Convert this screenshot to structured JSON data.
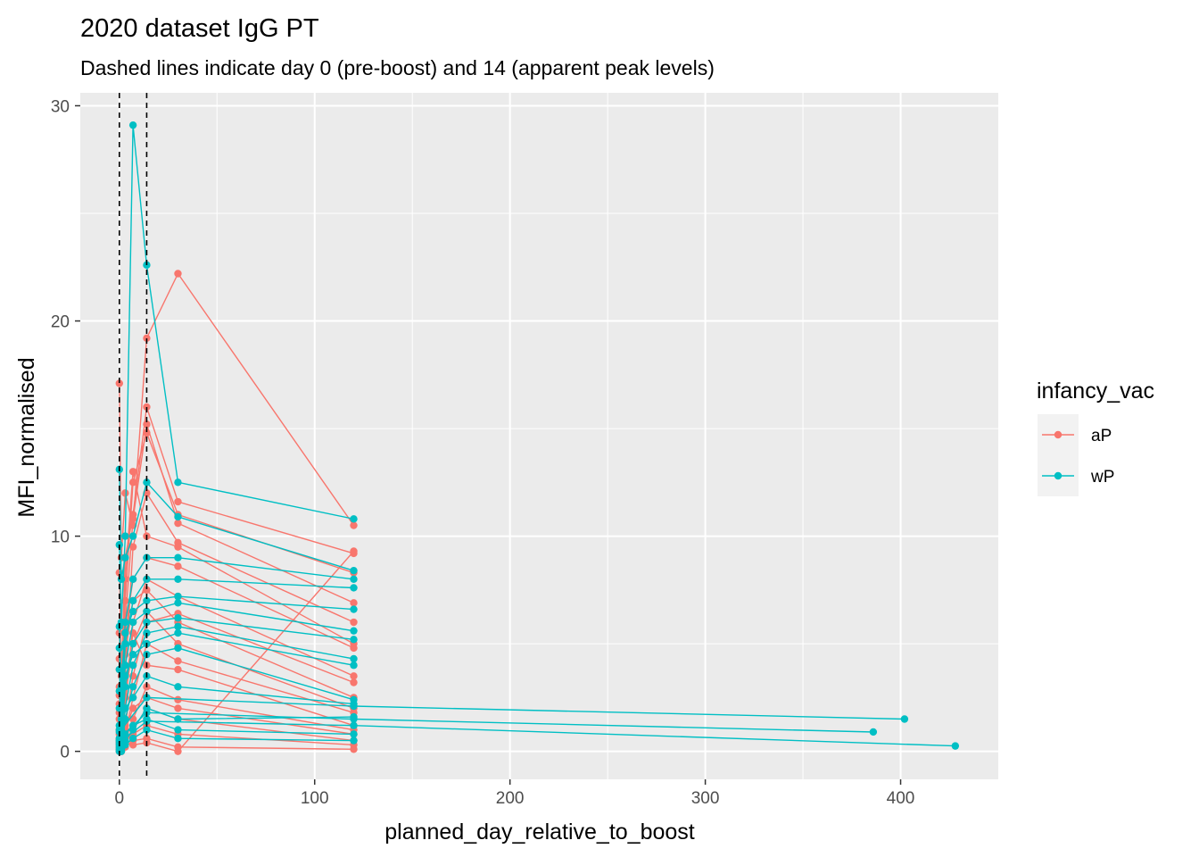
{
  "chart_data": {
    "type": "line",
    "title": "2020 dataset IgG PT",
    "subtitle": "Dashed lines indicate day 0 (pre-boost) and 14 (apparent peak levels)",
    "xlabel": "planned_day_relative_to_boost",
    "ylabel": "MFI_normalised",
    "xlim": [
      -20,
      450
    ],
    "ylim": [
      -1.3,
      30.6
    ],
    "x_ticks": [
      0,
      100,
      200,
      300,
      400
    ],
    "y_ticks": [
      0,
      10,
      20,
      30
    ],
    "x_tick_labels": [
      "0",
      "100",
      "200",
      "300",
      "400"
    ],
    "y_tick_labels": [
      "0",
      "10",
      "20",
      "30"
    ],
    "reference_lines": [
      {
        "axis": "x",
        "value": 0,
        "style": "dashed"
      },
      {
        "axis": "x",
        "value": 14,
        "style": "dashed"
      }
    ],
    "grid": true,
    "legend": {
      "title": "infancy_vac",
      "position": "right"
    },
    "colors": {
      "aP": "#F8766D",
      "wP": "#00BFC4",
      "panel": "#EBEBEB",
      "grid": "#FFFFFF",
      "ref_line": "#000000"
    },
    "series": [
      {
        "name": "aP",
        "subjects": [
          {
            "x": [
              0,
              1,
              3,
              7,
              14,
              30,
              120
            ],
            "y": [
              17.1,
              9.0,
              12.0,
              10.5,
              19.2,
              22.2,
              10.5
            ]
          },
          {
            "x": [
              0,
              1,
              3,
              7,
              14,
              30,
              120
            ],
            "y": [
              8.3,
              3.5,
              9.0,
              11.0,
              16.0,
              11.6,
              9.2
            ]
          },
          {
            "x": [
              0,
              1,
              3,
              7,
              14,
              30,
              120
            ],
            "y": [
              5.5,
              1.8,
              7.0,
              12.5,
              14.8,
              11.0,
              8.3
            ]
          },
          {
            "x": [
              0,
              1,
              3,
              7,
              14,
              30,
              120
            ],
            "y": [
              3.0,
              0.6,
              6.0,
              10.8,
              15.2,
              10.6,
              6.9
            ]
          },
          {
            "x": [
              0,
              1,
              3,
              7,
              14,
              30,
              120
            ],
            "y": [
              1.5,
              0.2,
              3.5,
              9.5,
              12.0,
              9.7,
              6.0
            ]
          },
          {
            "x": [
              0,
              1,
              3,
              7,
              14,
              30,
              120
            ],
            "y": [
              4.3,
              1.0,
              8.0,
              13.0,
              10.0,
              9.5,
              5.0
            ]
          },
          {
            "x": [
              0,
              1,
              3,
              7,
              14,
              30,
              120
            ],
            "y": [
              2.2,
              0.4,
              5.5,
              8.0,
              9.0,
              8.6,
              4.8
            ]
          },
          {
            "x": [
              0,
              1,
              3,
              7,
              14,
              30,
              120
            ],
            "y": [
              0.8,
              0.1,
              2.0,
              6.0,
              8.0,
              7.2,
              3.5
            ]
          },
          {
            "x": [
              0,
              1,
              3,
              7,
              14,
              30,
              120
            ],
            "y": [
              0.5,
              0.0,
              1.2,
              3.5,
              6.0,
              6.4,
              3.2
            ]
          },
          {
            "x": [
              0,
              1,
              3,
              7,
              14,
              30,
              120
            ],
            "y": [
              3.8,
              0.9,
              4.5,
              7.0,
              7.5,
              6.0,
              2.5
            ]
          },
          {
            "x": [
              0,
              1,
              3,
              7,
              14,
              30,
              120
            ],
            "y": [
              1.0,
              0.3,
              2.5,
              5.0,
              6.5,
              5.0,
              2.0
            ]
          },
          {
            "x": [
              0,
              1,
              3,
              7,
              14,
              30,
              120
            ],
            "y": [
              0.3,
              0.0,
              0.8,
              2.5,
              5.0,
              4.2,
              1.8
            ]
          },
          {
            "x": [
              0,
              1,
              3,
              7,
              14,
              30,
              120
            ],
            "y": [
              2.6,
              0.5,
              3.0,
              5.5,
              4.0,
              3.8,
              1.2
            ]
          },
          {
            "x": [
              0,
              1,
              3,
              7,
              14,
              30,
              120
            ],
            "y": [
              0.2,
              0.0,
              0.5,
              1.5,
              3.0,
              2.4,
              1.0
            ]
          },
          {
            "x": [
              0,
              1,
              3,
              7,
              14,
              30,
              120
            ],
            "y": [
              1.8,
              0.2,
              1.0,
              2.0,
              2.5,
              2.0,
              0.8
            ]
          },
          {
            "x": [
              0,
              1,
              3,
              7,
              14,
              30,
              120
            ],
            "y": [
              0.1,
              0.0,
              0.3,
              1.0,
              2.0,
              1.5,
              0.5
            ]
          },
          {
            "x": [
              0,
              1,
              3,
              7,
              14,
              30,
              120
            ],
            "y": [
              0.6,
              0.1,
              0.6,
              0.8,
              1.2,
              0.8,
              0.3
            ]
          },
          {
            "x": [
              0,
              1,
              3,
              7,
              14,
              30,
              120
            ],
            "y": [
              0.0,
              0.0,
              0.2,
              0.5,
              0.6,
              0.2,
              0.1
            ]
          },
          {
            "x": [
              0,
              1,
              3,
              7,
              14,
              30,
              120
            ],
            "y": [
              0.4,
              0.1,
              0.4,
              0.3,
              0.4,
              0.0,
              9.3
            ]
          }
        ]
      },
      {
        "name": "wP",
        "subjects": [
          {
            "x": [
              0,
              1,
              3,
              7,
              14,
              30,
              120
            ],
            "y": [
              9.6,
              6.0,
              10.0,
              29.1,
              22.6,
              12.5,
              10.8
            ]
          },
          {
            "x": [
              0,
              1,
              3,
              7,
              14,
              30,
              120
            ],
            "y": [
              13.1,
              8.0,
              9.0,
              10.0,
              12.5,
              10.9,
              8.4
            ]
          },
          {
            "x": [
              0,
              1,
              3,
              7,
              14,
              30,
              120
            ],
            "y": [
              5.8,
              3.0,
              6.0,
              8.0,
              9.0,
              9.0,
              8.0
            ]
          },
          {
            "x": [
              0,
              1,
              3,
              7,
              14,
              30,
              120
            ],
            "y": [
              3.8,
              1.5,
              5.0,
              7.0,
              8.0,
              8.0,
              7.6
            ]
          },
          {
            "x": [
              0,
              1,
              3,
              7,
              14,
              30,
              120
            ],
            "y": [
              4.8,
              2.0,
              5.5,
              6.5,
              7.0,
              7.2,
              6.6
            ]
          },
          {
            "x": [
              0,
              1,
              3,
              7,
              14,
              30,
              120
            ],
            "y": [
              2.8,
              1.0,
              4.0,
              6.0,
              6.5,
              6.9,
              5.6
            ]
          },
          {
            "x": [
              0,
              1,
              3,
              7,
              14,
              30,
              120
            ],
            "y": [
              1.2,
              0.5,
              3.0,
              5.0,
              6.0,
              6.2,
              5.2
            ]
          },
          {
            "x": [
              0,
              1,
              3,
              7,
              14,
              30,
              120
            ],
            "y": [
              0.5,
              0.2,
              2.0,
              4.0,
              5.5,
              5.8,
              4.3
            ]
          },
          {
            "x": [
              0,
              1,
              3,
              7,
              14,
              30,
              120
            ],
            "y": [
              2.0,
              0.8,
              3.5,
              4.5,
              5.0,
              5.5,
              4.0
            ]
          },
          {
            "x": [
              0,
              1,
              3,
              7,
              14,
              30,
              120
            ],
            "y": [
              0.2,
              0.1,
              1.5,
              3.0,
              4.5,
              4.8,
              2.4
            ]
          },
          {
            "x": [
              0,
              1,
              3,
              7,
              14,
              30,
              120
            ],
            "y": [
              1.0,
              0.3,
              2.0,
              2.5,
              3.5,
              3.0,
              2.2
            ]
          },
          {
            "x": [
              0,
              1,
              3,
              7,
              14,
              30,
              120
            ],
            "y": [
              0.0,
              0.0,
              0.5,
              1.0,
              2.0,
              1.5,
              1.6
            ]
          },
          {
            "x": [
              0,
              1,
              3,
              7,
              14,
              30,
              120
            ],
            "y": [
              0.3,
              0.1,
              0.8,
              1.2,
              1.5,
              1.0,
              0.8
            ]
          },
          {
            "x": [
              0,
              1,
              3,
              7,
              14,
              30,
              120
            ],
            "y": [
              0.1,
              0.0,
              0.3,
              0.6,
              1.0,
              0.6,
              0.5
            ]
          },
          {
            "x": [
              0,
              14,
              120,
              402
            ],
            "y": [
              0.9,
              2.5,
              2.1,
              1.5
            ]
          },
          {
            "x": [
              0,
              14,
              120,
              386
            ],
            "y": [
              0.6,
              1.8,
              1.5,
              0.9
            ]
          },
          {
            "x": [
              0,
              14,
              120,
              428
            ],
            "y": [
              0.4,
              1.4,
              1.2,
              0.25
            ]
          }
        ]
      }
    ]
  }
}
